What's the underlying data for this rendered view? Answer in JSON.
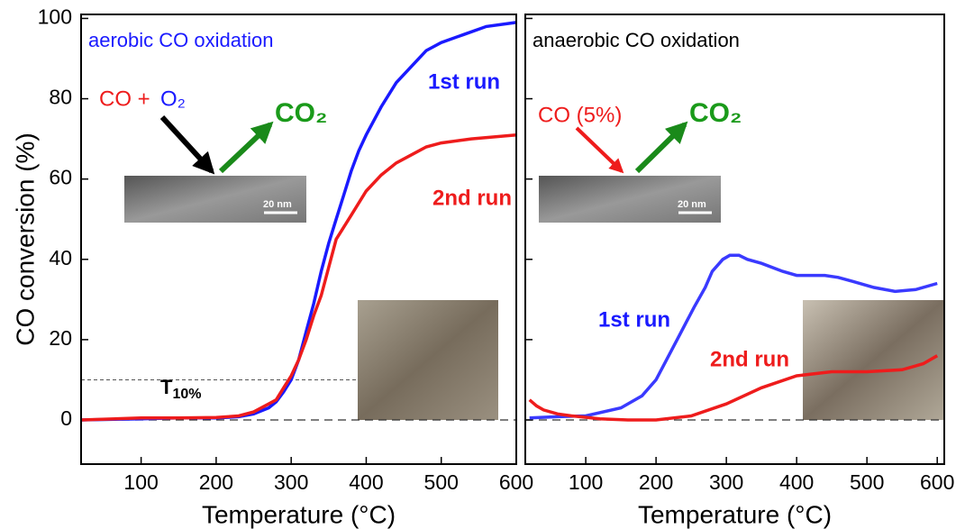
{
  "chart_data": [
    {
      "type": "line",
      "title": "aerobic CO oxidation",
      "title_color": "#1a1aff",
      "x_label": "Temperature (°C)",
      "y_label": "CO conversion (%)",
      "xlim": [
        20,
        600
      ],
      "ylim": [
        -11,
        101
      ],
      "xticks": [
        100,
        200,
        300,
        400,
        500,
        600
      ],
      "yticks": [
        0,
        20,
        40,
        60,
        80,
        100
      ],
      "series": [
        {
          "name": "1st run",
          "color": "#1a1aff",
          "x": [
            20,
            100,
            150,
            200,
            230,
            250,
            270,
            280,
            290,
            300,
            310,
            320,
            330,
            340,
            350,
            360,
            370,
            380,
            390,
            400,
            420,
            440,
            460,
            480,
            500,
            530,
            560,
            600
          ],
          "values": [
            0,
            0.3,
            0.5,
            0.5,
            0.8,
            1.5,
            3,
            4.5,
            7,
            10,
            15,
            22,
            29,
            37,
            44,
            50,
            56,
            62,
            67,
            71,
            78,
            84,
            88,
            92,
            94,
            96,
            98,
            99
          ]
        },
        {
          "name": "2nd run",
          "color": "#ee1c1c",
          "x": [
            20,
            100,
            150,
            200,
            230,
            250,
            270,
            280,
            290,
            300,
            310,
            320,
            330,
            340,
            350,
            360,
            370,
            380,
            400,
            420,
            440,
            460,
            480,
            500,
            540,
            600
          ],
          "values": [
            0,
            0.5,
            0.5,
            0.6,
            1,
            2,
            4,
            5,
            8,
            11,
            15,
            20,
            26,
            31,
            38,
            45,
            48,
            51,
            57,
            61,
            64,
            66,
            68,
            69,
            70,
            71
          ]
        }
      ],
      "annotations": [
        {
          "text": "1st run",
          "color": "#1a1aff"
        },
        {
          "text": "2nd run",
          "color": "#ee1c1c"
        },
        {
          "text": "CO + ",
          "color": "#ee1c1c"
        },
        {
          "text": "O₂",
          "color": "#1a1aff"
        },
        {
          "text": "CO₂",
          "color": "#1a9a1a"
        },
        {
          "text": "T10%",
          "color": "#000"
        },
        {
          "text": "20 nm",
          "color": "#fff"
        }
      ]
    },
    {
      "type": "line",
      "title": "anaerobic CO oxidation",
      "title_color": "#000",
      "x_label": "Temperature (°C)",
      "xlim": [
        14,
        610
      ],
      "ylim": [
        -11,
        101
      ],
      "xticks": [
        100,
        200,
        300,
        400,
        500,
        600
      ],
      "yticks": [
        0,
        20,
        40,
        60,
        80,
        100
      ],
      "series": [
        {
          "name": "1st run",
          "color": "#3a3aff",
          "x": [
            20,
            60,
            100,
            150,
            180,
            200,
            215,
            230,
            254,
            270,
            280,
            295,
            305,
            318,
            330,
            350,
            380,
            400,
            420,
            440,
            459,
            480,
            510,
            540,
            570,
            600
          ],
          "values": [
            0.5,
            0.8,
            1,
            3,
            6,
            10,
            15,
            20,
            28,
            33,
            37,
            40,
            41,
            41,
            40,
            39,
            37,
            36,
            36,
            36,
            35.5,
            34.5,
            33,
            32,
            32.5,
            34
          ]
        },
        {
          "name": "2nd run",
          "color": "#ee1c1c",
          "x": [
            20,
            30,
            40,
            60,
            80,
            120,
            160,
            200,
            250,
            300,
            350,
            400,
            450,
            500,
            550,
            580,
            600
          ],
          "values": [
            5,
            3.5,
            2.5,
            1.5,
            1,
            0.3,
            0,
            0,
            1,
            4,
            8,
            11,
            12,
            12,
            12.5,
            14,
            16
          ]
        }
      ],
      "annotations": [
        {
          "text": "1st run",
          "color": "#1a1aff"
        },
        {
          "text": "2nd run",
          "color": "#ee1c1c"
        },
        {
          "text": "CO (5%)",
          "color": "#ee1c1c"
        },
        {
          "text": "CO₂",
          "color": "#1a9a1a"
        },
        {
          "text": "20 nm",
          "color": "#fff"
        }
      ]
    }
  ]
}
